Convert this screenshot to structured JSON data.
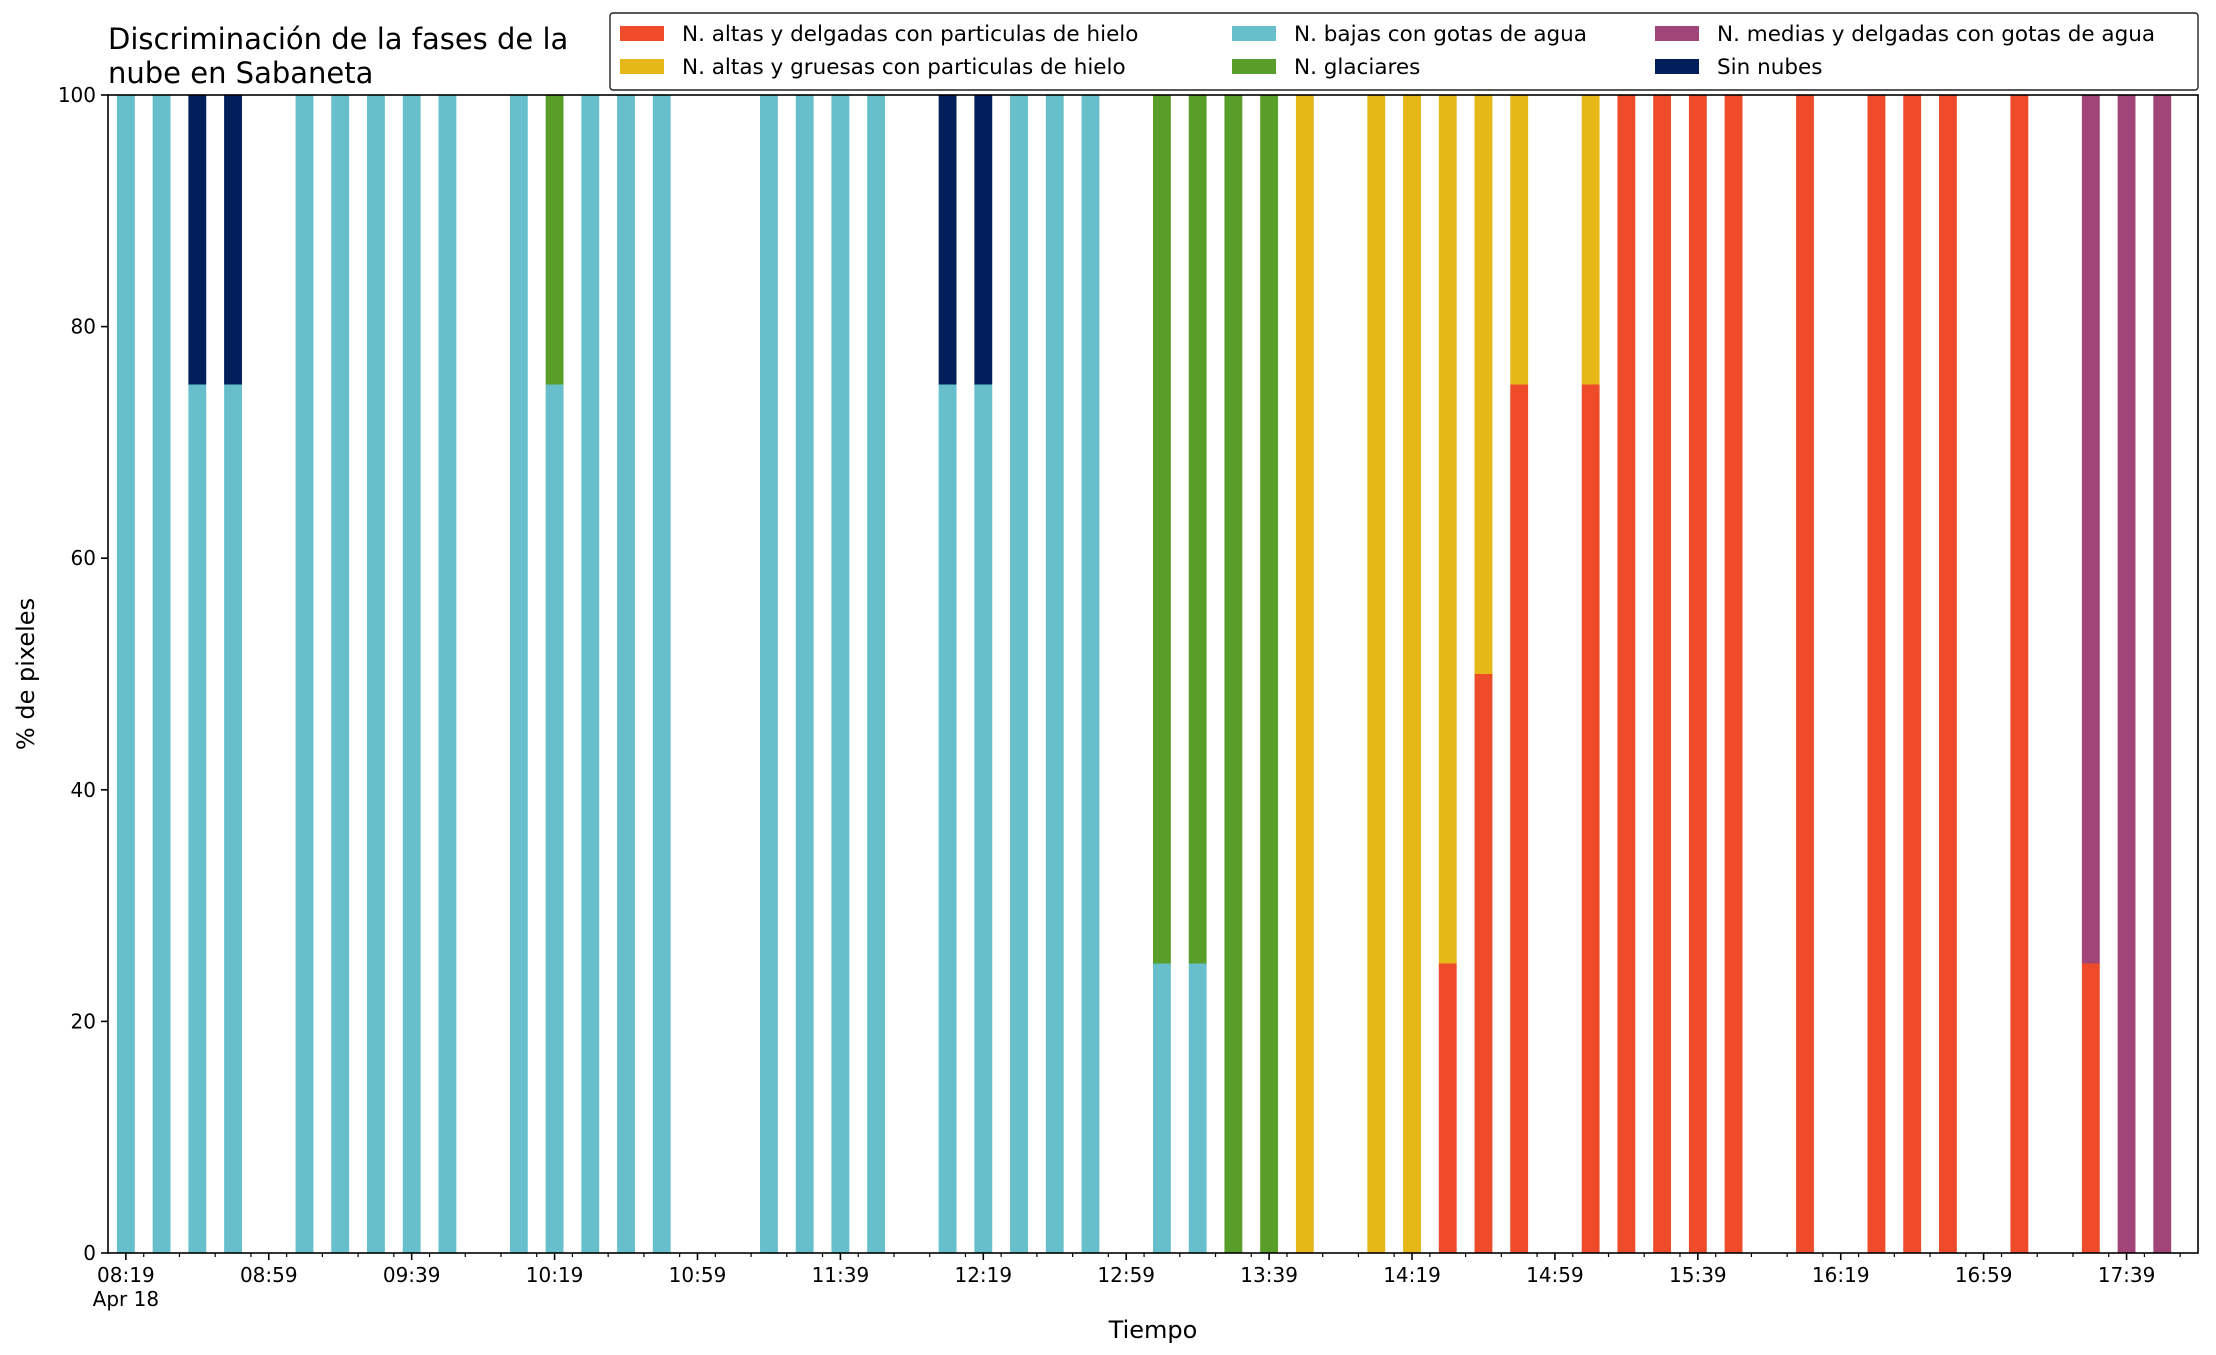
{
  "chart_data": {
    "type": "bar",
    "stacked": true,
    "title": [
      "Discriminación de la fases de la",
      "nube en Sabaneta"
    ],
    "xlabel": "Tiempo",
    "ylabel": "% de pixeles",
    "ylim": [
      0,
      100
    ],
    "yticks": [
      0,
      20,
      40,
      60,
      80,
      100
    ],
    "xlim": [
      "08:14",
      "17:59"
    ],
    "xtick_labels": [
      "08:19",
      "08:59",
      "09:39",
      "10:19",
      "10:59",
      "11:39",
      "12:19",
      "12:59",
      "13:39",
      "14:19",
      "14:59",
      "15:39",
      "16:19",
      "16:59",
      "17:39"
    ],
    "xtick_date_label": "Apr 18",
    "minor_tick_step_minutes": 10,
    "bar_width_minutes": 5,
    "grid": false,
    "legend_location": "top-right",
    "legend_columns": 3,
    "series": [
      {
        "key": "altas_delgadas",
        "name": "N. altas y delgadas con particulas de hielo",
        "color": "#ee4b2b"
      },
      {
        "key": "altas_gruesas",
        "name": "N. altas y gruesas con particulas de hielo",
        "color": "#e5b719"
      },
      {
        "key": "bajas",
        "name": "N. bajas con gotas de agua",
        "color": "#66bfca"
      },
      {
        "key": "glaciares",
        "name": "N. glaciares",
        "color": "#5a9e2a"
      },
      {
        "key": "medias",
        "name": "N. medias y delgadas con gotas de agua",
        "color": "#a14579"
      },
      {
        "key": "sin_nubes",
        "name": "Sin nubes",
        "color": "#001f5b"
      }
    ],
    "stack_order": [
      "altas_delgadas",
      "medias",
      "bajas",
      "glaciares",
      "altas_gruesas",
      "sin_nubes"
    ],
    "bars": [
      {
        "time": "08:19",
        "bajas": 100
      },
      {
        "time": "08:29",
        "bajas": 100
      },
      {
        "time": "08:39",
        "bajas": 75,
        "sin_nubes": 25
      },
      {
        "time": "08:49",
        "bajas": 75,
        "sin_nubes": 25
      },
      {
        "time": "09:09",
        "bajas": 100
      },
      {
        "time": "09:19",
        "bajas": 100
      },
      {
        "time": "09:29",
        "bajas": 100
      },
      {
        "time": "09:39",
        "bajas": 100
      },
      {
        "time": "09:49",
        "bajas": 100
      },
      {
        "time": "10:09",
        "bajas": 100
      },
      {
        "time": "10:19",
        "bajas": 75,
        "glaciares": 25
      },
      {
        "time": "10:29",
        "bajas": 100
      },
      {
        "time": "10:39",
        "bajas": 100
      },
      {
        "time": "10:49",
        "bajas": 100
      },
      {
        "time": "11:19",
        "bajas": 100
      },
      {
        "time": "11:29",
        "bajas": 100
      },
      {
        "time": "11:39",
        "bajas": 100
      },
      {
        "time": "11:49",
        "bajas": 100
      },
      {
        "time": "12:09",
        "bajas": 75,
        "sin_nubes": 25
      },
      {
        "time": "12:19",
        "bajas": 75,
        "sin_nubes": 25
      },
      {
        "time": "12:29",
        "bajas": 100
      },
      {
        "time": "12:39",
        "bajas": 100
      },
      {
        "time": "12:49",
        "bajas": 100
      },
      {
        "time": "13:09",
        "bajas": 25,
        "glaciares": 75
      },
      {
        "time": "13:19",
        "bajas": 25,
        "glaciares": 75
      },
      {
        "time": "13:29",
        "glaciares": 100
      },
      {
        "time": "13:39",
        "glaciares": 100
      },
      {
        "time": "13:49",
        "altas_gruesas": 100
      },
      {
        "time": "14:09",
        "altas_gruesas": 100
      },
      {
        "time": "14:19",
        "altas_gruesas": 100
      },
      {
        "time": "14:29",
        "altas_delgadas": 25,
        "altas_gruesas": 75
      },
      {
        "time": "14:39",
        "altas_delgadas": 50,
        "altas_gruesas": 50
      },
      {
        "time": "14:49",
        "altas_delgadas": 75,
        "altas_gruesas": 25
      },
      {
        "time": "15:09",
        "altas_delgadas": 75,
        "altas_gruesas": 25
      },
      {
        "time": "15:19",
        "altas_delgadas": 100
      },
      {
        "time": "15:29",
        "altas_delgadas": 100
      },
      {
        "time": "15:39",
        "altas_delgadas": 100
      },
      {
        "time": "15:49",
        "altas_delgadas": 100
      },
      {
        "time": "16:09",
        "altas_delgadas": 100
      },
      {
        "time": "16:29",
        "altas_delgadas": 100
      },
      {
        "time": "16:39",
        "altas_delgadas": 100
      },
      {
        "time": "16:49",
        "altas_delgadas": 100
      },
      {
        "time": "17:09",
        "altas_delgadas": 100
      },
      {
        "time": "17:29",
        "altas_delgadas": 25,
        "medias": 75
      },
      {
        "time": "17:39",
        "medias": 100
      },
      {
        "time": "17:49",
        "medias": 100
      }
    ]
  }
}
